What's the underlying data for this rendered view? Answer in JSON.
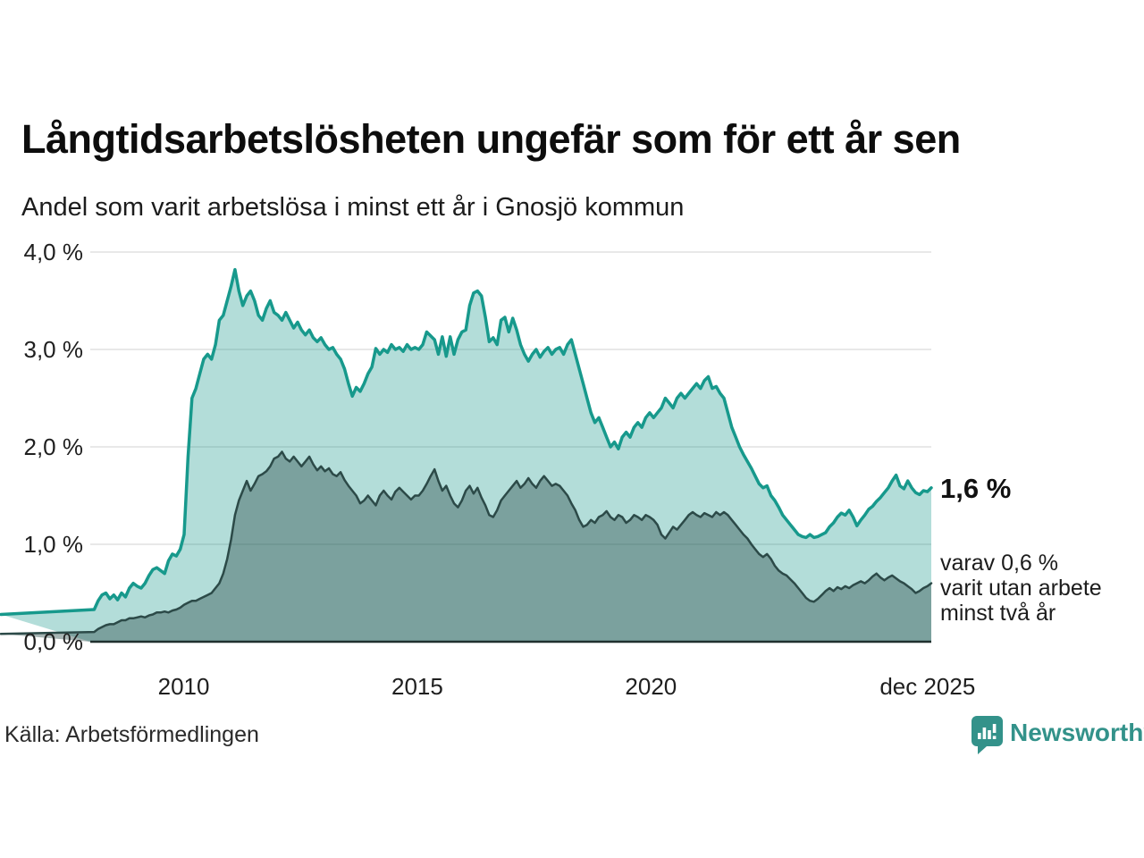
{
  "header": {
    "title": "Långtidsarbetslösheten ungefär som för ett år sen",
    "subtitle": "Andel som varit arbetslösa i minst ett år i Gnosjö kommun"
  },
  "annotations": {
    "latest_value": "1,6 %",
    "secondary": "varav 0,6 %\nvarit utan arbete\nminst två år"
  },
  "footer": {
    "source": "Källa: Arbetsförmedlingen",
    "brand": "Newsworthy"
  },
  "chart_data": {
    "type": "area",
    "title": "Långtidsarbetslösheten ungefär som för ett år sen",
    "subtitle": "Andel som varit arbetslösa i minst ett år i Gnosjö kommun",
    "x_unit": "monthly, 2008-01 to 2025-12",
    "x_domain": [
      2008.0,
      2026.0
    ],
    "ylim": [
      0,
      4.0
    ],
    "grid": "horizontal",
    "legend": "none (annotated at line ends)",
    "yticks": [
      {
        "value": 0.0,
        "label": "0,0 %"
      },
      {
        "value": 1.0,
        "label": "1,0 %"
      },
      {
        "value": 2.0,
        "label": "2,0 %"
      },
      {
        "value": 3.0,
        "label": "3,0 %"
      },
      {
        "value": 4.0,
        "label": "4,0 %"
      }
    ],
    "xticks": [
      {
        "pos": 2010.0,
        "label": "2010"
      },
      {
        "pos": 2015.0,
        "label": "2015"
      },
      {
        "pos": 2020.0,
        "label": "2020"
      },
      {
        "pos": 2025.92,
        "label": "dec 2025"
      }
    ],
    "colors": {
      "grid": "#e0e0e0",
      "baseline": "#20302e",
      "accent_teal": "#17998c",
      "dark_slate": "#2c4a48",
      "brand_teal": "#33928a"
    },
    "series": [
      {
        "name": "Andel arbetslösa minst ett år",
        "latest_label": "1,6 %",
        "line": "#17998c",
        "fill": "rgba(23,153,140,0.33)",
        "line_width": 3.5,
        "values": [
          0.28,
          0.33,
          0.42,
          0.48,
          0.5,
          0.44,
          0.48,
          0.43,
          0.5,
          0.46,
          0.55,
          0.6,
          0.57,
          0.55,
          0.6,
          0.68,
          0.74,
          0.76,
          0.73,
          0.7,
          0.83,
          0.9,
          0.88,
          0.95,
          1.1,
          1.9,
          2.5,
          2.6,
          2.75,
          2.9,
          2.95,
          2.9,
          3.05,
          3.3,
          3.35,
          3.5,
          3.65,
          3.82,
          3.6,
          3.45,
          3.55,
          3.6,
          3.5,
          3.35,
          3.3,
          3.42,
          3.5,
          3.38,
          3.35,
          3.3,
          3.38,
          3.3,
          3.22,
          3.28,
          3.2,
          3.15,
          3.2,
          3.12,
          3.08,
          3.12,
          3.05,
          3.0,
          3.02,
          2.95,
          2.9,
          2.8,
          2.65,
          2.52,
          2.61,
          2.57,
          2.65,
          2.75,
          2.82,
          3.01,
          2.95,
          3.0,
          2.97,
          3.05,
          3.0,
          3.02,
          2.98,
          3.05,
          3.0,
          3.02,
          3.0,
          3.05,
          3.18,
          3.14,
          3.1,
          2.95,
          3.13,
          2.93,
          3.13,
          2.95,
          3.1,
          3.18,
          3.2,
          3.45,
          3.58,
          3.6,
          3.55,
          3.33,
          3.08,
          3.12,
          3.05,
          3.3,
          3.33,
          3.18,
          3.32,
          3.2,
          3.05,
          2.95,
          2.88,
          2.95,
          3.0,
          2.92,
          2.98,
          3.02,
          2.95,
          3.0,
          3.02,
          2.95,
          3.05,
          3.1,
          2.95,
          2.8,
          2.65,
          2.5,
          2.35,
          2.25,
          2.3,
          2.2,
          2.1,
          2.0,
          2.05,
          1.98,
          2.1,
          2.15,
          2.1,
          2.2,
          2.25,
          2.2,
          2.3,
          2.35,
          2.3,
          2.35,
          2.4,
          2.5,
          2.45,
          2.4,
          2.5,
          2.55,
          2.5,
          2.55,
          2.6,
          2.65,
          2.6,
          2.68,
          2.72,
          2.6,
          2.62,
          2.55,
          2.5,
          2.35,
          2.2,
          2.1,
          2.0,
          1.92,
          1.85,
          1.78,
          1.7,
          1.62,
          1.58,
          1.6,
          1.5,
          1.45,
          1.38,
          1.3,
          1.25,
          1.2,
          1.15,
          1.1,
          1.08,
          1.07,
          1.1,
          1.07,
          1.08,
          1.1,
          1.12,
          1.18,
          1.22,
          1.28,
          1.32,
          1.3,
          1.35,
          1.28,
          1.19,
          1.25,
          1.3,
          1.36,
          1.39,
          1.44,
          1.48,
          1.53,
          1.58,
          1.65,
          1.71,
          1.6,
          1.57,
          1.65,
          1.58,
          1.53,
          1.51,
          1.55,
          1.54,
          1.58
        ]
      },
      {
        "name": "varav utan arbete minst två år",
        "latest_label": "varav 0,6 % varit utan arbete minst två år",
        "line": "#2c4a48",
        "fill": "rgba(45,79,76,0.42)",
        "line_width": 2.5,
        "values": [
          0.08,
          0.1,
          0.13,
          0.15,
          0.17,
          0.18,
          0.18,
          0.2,
          0.22,
          0.22,
          0.24,
          0.24,
          0.25,
          0.26,
          0.25,
          0.27,
          0.28,
          0.3,
          0.3,
          0.31,
          0.3,
          0.32,
          0.33,
          0.35,
          0.38,
          0.4,
          0.42,
          0.42,
          0.44,
          0.46,
          0.48,
          0.5,
          0.55,
          0.6,
          0.7,
          0.85,
          1.05,
          1.3,
          1.45,
          1.55,
          1.65,
          1.55,
          1.62,
          1.7,
          1.72,
          1.75,
          1.8,
          1.88,
          1.9,
          1.95,
          1.88,
          1.85,
          1.9,
          1.85,
          1.8,
          1.85,
          1.9,
          1.82,
          1.76,
          1.8,
          1.75,
          1.78,
          1.72,
          1.7,
          1.74,
          1.66,
          1.6,
          1.55,
          1.5,
          1.42,
          1.45,
          1.5,
          1.45,
          1.4,
          1.5,
          1.55,
          1.5,
          1.46,
          1.54,
          1.58,
          1.54,
          1.5,
          1.46,
          1.5,
          1.5,
          1.55,
          1.62,
          1.7,
          1.77,
          1.65,
          1.55,
          1.6,
          1.5,
          1.42,
          1.38,
          1.45,
          1.55,
          1.6,
          1.52,
          1.58,
          1.48,
          1.4,
          1.3,
          1.28,
          1.35,
          1.45,
          1.5,
          1.55,
          1.6,
          1.65,
          1.58,
          1.62,
          1.68,
          1.62,
          1.58,
          1.65,
          1.7,
          1.65,
          1.6,
          1.62,
          1.6,
          1.55,
          1.5,
          1.42,
          1.35,
          1.25,
          1.18,
          1.2,
          1.25,
          1.22,
          1.28,
          1.3,
          1.34,
          1.28,
          1.25,
          1.3,
          1.28,
          1.22,
          1.25,
          1.3,
          1.28,
          1.25,
          1.3,
          1.28,
          1.25,
          1.2,
          1.1,
          1.06,
          1.12,
          1.18,
          1.15,
          1.2,
          1.25,
          1.3,
          1.33,
          1.3,
          1.28,
          1.32,
          1.3,
          1.28,
          1.33,
          1.3,
          1.33,
          1.3,
          1.25,
          1.2,
          1.15,
          1.1,
          1.06,
          1.0,
          0.95,
          0.9,
          0.87,
          0.9,
          0.85,
          0.78,
          0.73,
          0.7,
          0.68,
          0.64,
          0.6,
          0.55,
          0.5,
          0.45,
          0.42,
          0.41,
          0.44,
          0.48,
          0.52,
          0.55,
          0.52,
          0.56,
          0.54,
          0.57,
          0.55,
          0.58,
          0.6,
          0.62,
          0.6,
          0.63,
          0.67,
          0.7,
          0.66,
          0.63,
          0.66,
          0.68,
          0.65,
          0.62,
          0.6,
          0.57,
          0.54,
          0.5,
          0.52,
          0.55,
          0.57,
          0.6
        ]
      }
    ]
  }
}
